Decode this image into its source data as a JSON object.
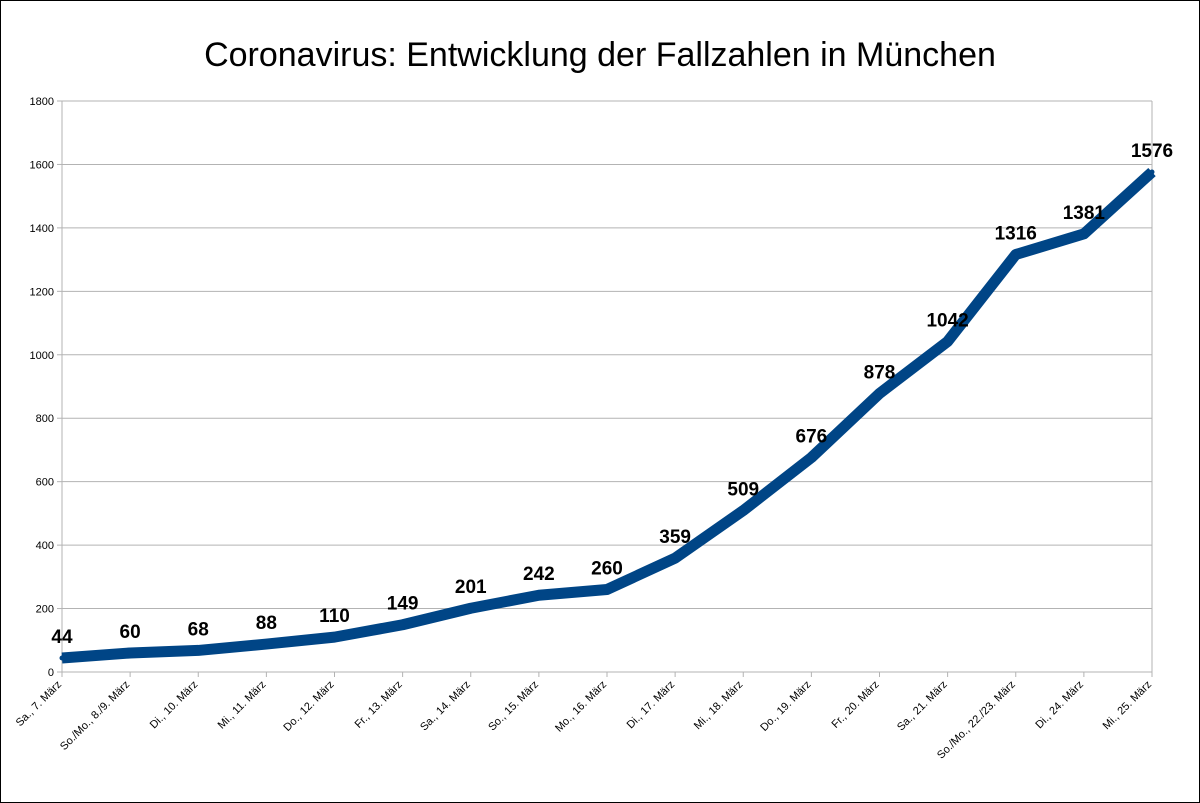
{
  "chart_data": {
    "type": "line",
    "title": "Coronavirus: Entwicklung der Fallzahlen in München",
    "xlabel": "",
    "ylabel": "",
    "ylim": [
      0,
      1800
    ],
    "yticks": [
      0,
      200,
      400,
      600,
      800,
      1000,
      1200,
      1400,
      1600,
      1800
    ],
    "grid": true,
    "legend": "none",
    "categories": [
      "Sa., 7. März",
      "So./Mo., 8./9. März",
      "Di., 10. März",
      "Mi., 11. März",
      "Do., 12. März",
      "Fr., 13. März",
      "Sa., 14. März",
      "So., 15. März",
      "Mo., 16. März",
      "Di., 17. März",
      "Mi., 18. März",
      "Do., 19. März",
      "Fr., 20. März",
      "Sa., 21. März",
      "So./Mo., 22./23. März",
      "Di., 24. März",
      "Mi., 25. März"
    ],
    "series": [
      {
        "values": [
          44,
          60,
          68,
          88,
          110,
          149,
          201,
          242,
          260,
          359,
          509,
          676,
          878,
          1042,
          1316,
          1381,
          1576
        ],
        "color": "#004586"
      }
    ]
  }
}
